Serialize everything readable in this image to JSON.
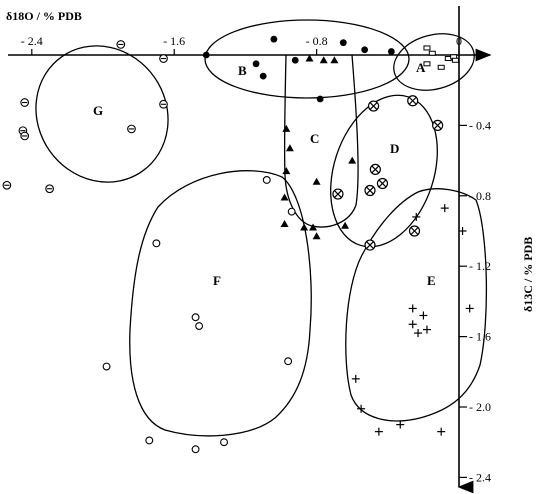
{
  "chart_data": {
    "type": "scatter",
    "title": "",
    "xlabel": "δ18O / % PDB",
    "ylabel": "δ13C / % PDB",
    "xlim": [
      -2.6,
      0.05
    ],
    "ylim": [
      -2.65,
      0.1
    ],
    "x_ticks": [
      -2.4,
      -1.6,
      -0.8,
      0
    ],
    "y_ticks": [
      -0.4,
      -0.8,
      -1.2,
      -1.6,
      -2.0,
      -2.4
    ],
    "x_tick_labels": [
      "- 2.4",
      "- 1.6",
      "- 0.8",
      "0"
    ],
    "y_tick_labels": [
      "- 0.4",
      "- 0.8",
      "- 1.2",
      "- 1.6",
      "- 2.0",
      "- 2.4"
    ],
    "axes_orientation": "x-axis along top with values decreasing leftward; y-axis on right with values decreasing downward",
    "groups": [
      {
        "name": "A",
        "marker": "open-square",
        "points": [
          [
            -0.06,
            -0.02
          ],
          [
            -0.03,
            -0.01
          ],
          [
            -0.1,
            -0.07
          ],
          [
            -0.15,
            0.01
          ],
          [
            -0.18,
            0.04
          ],
          [
            -0.02,
            -0.03
          ],
          [
            -0.18,
            -0.05
          ]
        ]
      },
      {
        "name": "B",
        "marker": "filled-circle",
        "points": [
          [
            -1.04,
            0.09
          ],
          [
            -0.92,
            -0.03
          ],
          [
            -0.65,
            0.07
          ],
          [
            -0.53,
            0.03
          ],
          [
            -0.38,
            0.02
          ],
          [
            -1.42,
            0.0
          ],
          [
            -1.14,
            -0.05
          ],
          [
            -1.1,
            -0.12
          ],
          [
            -0.78,
            -0.25
          ]
        ]
      },
      {
        "name": "C",
        "marker": "filled-triangle",
        "points": [
          [
            -0.84,
            -0.02
          ],
          [
            -0.76,
            -0.03
          ],
          [
            -0.7,
            -0.03
          ],
          [
            -0.95,
            -0.53
          ],
          [
            -0.97,
            -0.42
          ],
          [
            -0.97,
            -0.66
          ],
          [
            -0.8,
            -0.72
          ],
          [
            -0.6,
            -0.6
          ],
          [
            -0.98,
            -0.81
          ],
          [
            -0.98,
            -0.96
          ],
          [
            -0.87,
            -0.98
          ],
          [
            -0.82,
            -0.98
          ],
          [
            -0.8,
            -1.03
          ],
          [
            -0.64,
            -0.97
          ]
        ]
      },
      {
        "name": "D",
        "marker": "circle-cross",
        "points": [
          [
            -0.48,
            -0.29
          ],
          [
            -0.26,
            -0.26
          ],
          [
            -0.12,
            -0.4
          ],
          [
            -0.47,
            -0.65
          ],
          [
            -0.43,
            -0.73
          ],
          [
            -0.5,
            -0.77
          ],
          [
            -0.68,
            -0.79
          ],
          [
            -0.5,
            -1.08
          ],
          [
            -0.25,
            -1.0
          ]
        ]
      },
      {
        "name": "E",
        "marker": "plus",
        "points": [
          [
            -0.08,
            -0.87
          ],
          [
            -0.24,
            -0.92
          ],
          [
            0.02,
            -1.0
          ],
          [
            0.06,
            -1.44
          ],
          [
            -0.26,
            -1.44
          ],
          [
            -0.2,
            -1.48
          ],
          [
            -0.26,
            -1.53
          ],
          [
            -0.23,
            -1.58
          ],
          [
            -0.18,
            -1.56
          ],
          [
            -0.58,
            -1.84
          ],
          [
            -0.55,
            -2.01
          ],
          [
            -0.45,
            -2.14
          ],
          [
            -0.33,
            -2.1
          ],
          [
            -0.1,
            -2.14
          ]
        ]
      },
      {
        "name": "F",
        "marker": "open-circle",
        "points": [
          [
            -1.08,
            -0.71
          ],
          [
            -0.94,
            -0.89
          ],
          [
            -1.7,
            -1.07
          ],
          [
            -1.48,
            -1.49
          ],
          [
            -1.46,
            -1.54
          ],
          [
            -1.98,
            -1.77
          ],
          [
            -0.96,
            -1.74
          ],
          [
            -1.74,
            -2.19
          ],
          [
            -1.48,
            -2.24
          ],
          [
            -1.32,
            -2.2
          ]
        ]
      },
      {
        "name": "G",
        "marker": "circle-bar",
        "points": [
          [
            -1.9,
            0.06
          ],
          [
            -1.66,
            -0.02
          ],
          [
            -2.44,
            -0.27
          ],
          [
            -2.45,
            -0.43
          ],
          [
            -2.44,
            -0.46
          ],
          [
            -1.84,
            -0.42
          ],
          [
            -1.66,
            -0.28
          ],
          [
            -2.64,
            -0.42
          ],
          [
            -2.54,
            -0.74
          ],
          [
            -2.3,
            -0.76
          ]
        ]
      }
    ]
  }
}
